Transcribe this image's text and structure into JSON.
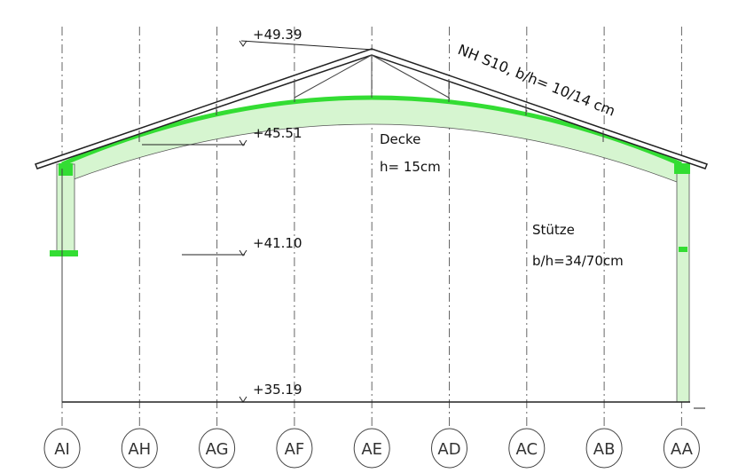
{
  "levels": [
    "+49.39",
    "+45.51",
    "+41.10",
    "+35.19"
  ],
  "annotations": {
    "timber": "NH S10, b/h= 10/14 cm",
    "slab": "Decke",
    "slab_height": "h= 15cm",
    "column": "Stütze",
    "column_size": "b/h=34/70cm"
  },
  "axes": [
    "AI",
    "AH",
    "AG",
    "AF",
    "AE",
    "AD",
    "AC",
    "AB",
    "AA"
  ]
}
